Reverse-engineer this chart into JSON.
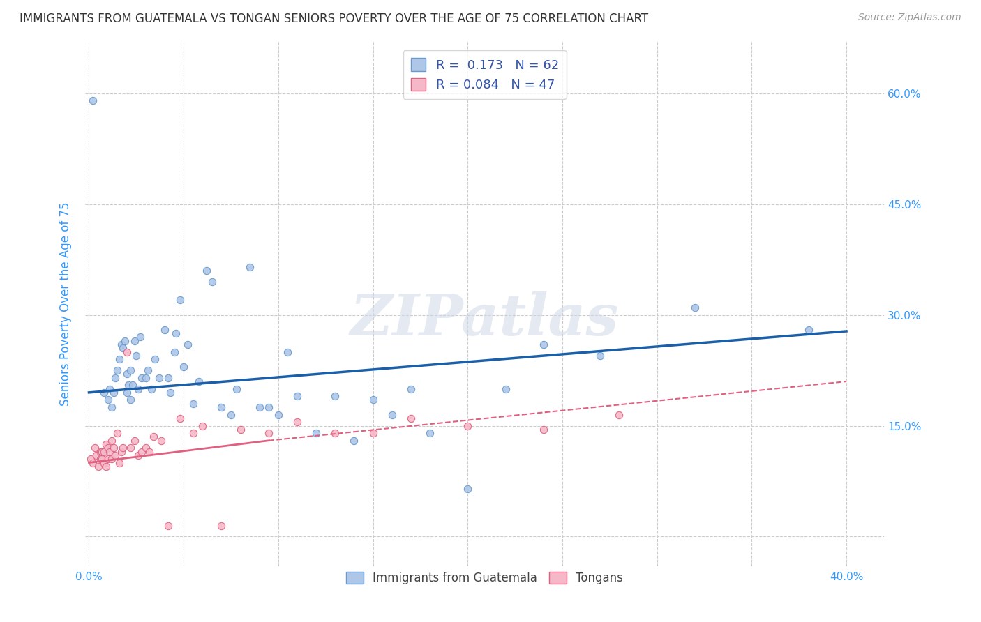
{
  "title": "IMMIGRANTS FROM GUATEMALA VS TONGAN SENIORS POVERTY OVER THE AGE OF 75 CORRELATION CHART",
  "source": "Source: ZipAtlas.com",
  "ylabel": "Seniors Poverty Over the Age of 75",
  "r_guatemala": 0.173,
  "n_guatemala": 62,
  "r_tongan": 0.084,
  "n_tongan": 47,
  "x_ticks": [
    0.0,
    0.05,
    0.1,
    0.15,
    0.2,
    0.25,
    0.3,
    0.35,
    0.4
  ],
  "y_ticks": [
    0.0,
    0.15,
    0.3,
    0.45,
    0.6
  ],
  "y_tick_labels_right": [
    "",
    "15.0%",
    "30.0%",
    "45.0%",
    "60.0%"
  ],
  "xlim": [
    -0.002,
    0.42
  ],
  "ylim": [
    -0.04,
    0.67
  ],
  "scatter_guatemala": {
    "x": [
      0.002,
      0.008,
      0.01,
      0.011,
      0.012,
      0.013,
      0.014,
      0.015,
      0.016,
      0.017,
      0.018,
      0.019,
      0.02,
      0.02,
      0.021,
      0.022,
      0.022,
      0.023,
      0.024,
      0.025,
      0.026,
      0.027,
      0.028,
      0.03,
      0.031,
      0.033,
      0.035,
      0.037,
      0.04,
      0.042,
      0.043,
      0.045,
      0.046,
      0.048,
      0.05,
      0.052,
      0.055,
      0.058,
      0.062,
      0.065,
      0.07,
      0.075,
      0.078,
      0.085,
      0.09,
      0.095,
      0.1,
      0.105,
      0.11,
      0.12,
      0.13,
      0.14,
      0.15,
      0.16,
      0.17,
      0.18,
      0.2,
      0.22,
      0.24,
      0.27,
      0.32,
      0.38
    ],
    "y": [
      0.59,
      0.195,
      0.185,
      0.2,
      0.175,
      0.195,
      0.215,
      0.225,
      0.24,
      0.26,
      0.255,
      0.265,
      0.22,
      0.195,
      0.205,
      0.225,
      0.185,
      0.205,
      0.265,
      0.245,
      0.2,
      0.27,
      0.215,
      0.215,
      0.225,
      0.2,
      0.24,
      0.215,
      0.28,
      0.215,
      0.195,
      0.25,
      0.275,
      0.32,
      0.23,
      0.26,
      0.18,
      0.21,
      0.36,
      0.345,
      0.175,
      0.165,
      0.2,
      0.365,
      0.175,
      0.175,
      0.165,
      0.25,
      0.19,
      0.14,
      0.19,
      0.13,
      0.185,
      0.165,
      0.2,
      0.14,
      0.065,
      0.2,
      0.26,
      0.245,
      0.31,
      0.28
    ],
    "color": "#aec6e8",
    "edge_color": "#6699cc",
    "size": 55
  },
  "scatter_tongan": {
    "x": [
      0.001,
      0.002,
      0.003,
      0.004,
      0.005,
      0.006,
      0.006,
      0.007,
      0.007,
      0.008,
      0.008,
      0.009,
      0.009,
      0.01,
      0.01,
      0.011,
      0.012,
      0.012,
      0.013,
      0.014,
      0.015,
      0.016,
      0.017,
      0.018,
      0.02,
      0.022,
      0.024,
      0.026,
      0.028,
      0.03,
      0.032,
      0.034,
      0.038,
      0.042,
      0.048,
      0.055,
      0.06,
      0.07,
      0.08,
      0.095,
      0.11,
      0.13,
      0.15,
      0.17,
      0.2,
      0.24,
      0.28
    ],
    "y": [
      0.105,
      0.1,
      0.12,
      0.11,
      0.095,
      0.115,
      0.105,
      0.105,
      0.115,
      0.1,
      0.115,
      0.095,
      0.125,
      0.12,
      0.105,
      0.115,
      0.13,
      0.105,
      0.12,
      0.11,
      0.14,
      0.1,
      0.115,
      0.12,
      0.25,
      0.12,
      0.13,
      0.11,
      0.115,
      0.12,
      0.115,
      0.135,
      0.13,
      0.015,
      0.16,
      0.14,
      0.15,
      0.015,
      0.145,
      0.14,
      0.155,
      0.14,
      0.14,
      0.16,
      0.15,
      0.145,
      0.165
    ],
    "color": "#f5b8c8",
    "edge_color": "#e06080",
    "size": 55
  },
  "trend_guatemala": {
    "x_start": 0.0,
    "x_end": 0.4,
    "y_start": 0.195,
    "y_end": 0.278,
    "color": "#1a5fa8",
    "linewidth": 2.5
  },
  "trend_tongan_solid": {
    "x_start": 0.0,
    "x_end": 0.095,
    "y_start": 0.1,
    "y_end": 0.13,
    "color": "#e06080",
    "linewidth": 2.0
  },
  "trend_tongan_dashed": {
    "x_start": 0.095,
    "x_end": 0.4,
    "y_start": 0.13,
    "y_end": 0.21,
    "color": "#e06080",
    "linewidth": 1.5,
    "linestyle": "--"
  },
  "watermark": "ZIPatlas",
  "watermark_color": "#d0d8e8",
  "background_color": "#ffffff",
  "grid_color": "#cccccc",
  "title_color": "#333333",
  "axis_label_color": "#3399ff",
  "legend_r_color": "#3355aa"
}
